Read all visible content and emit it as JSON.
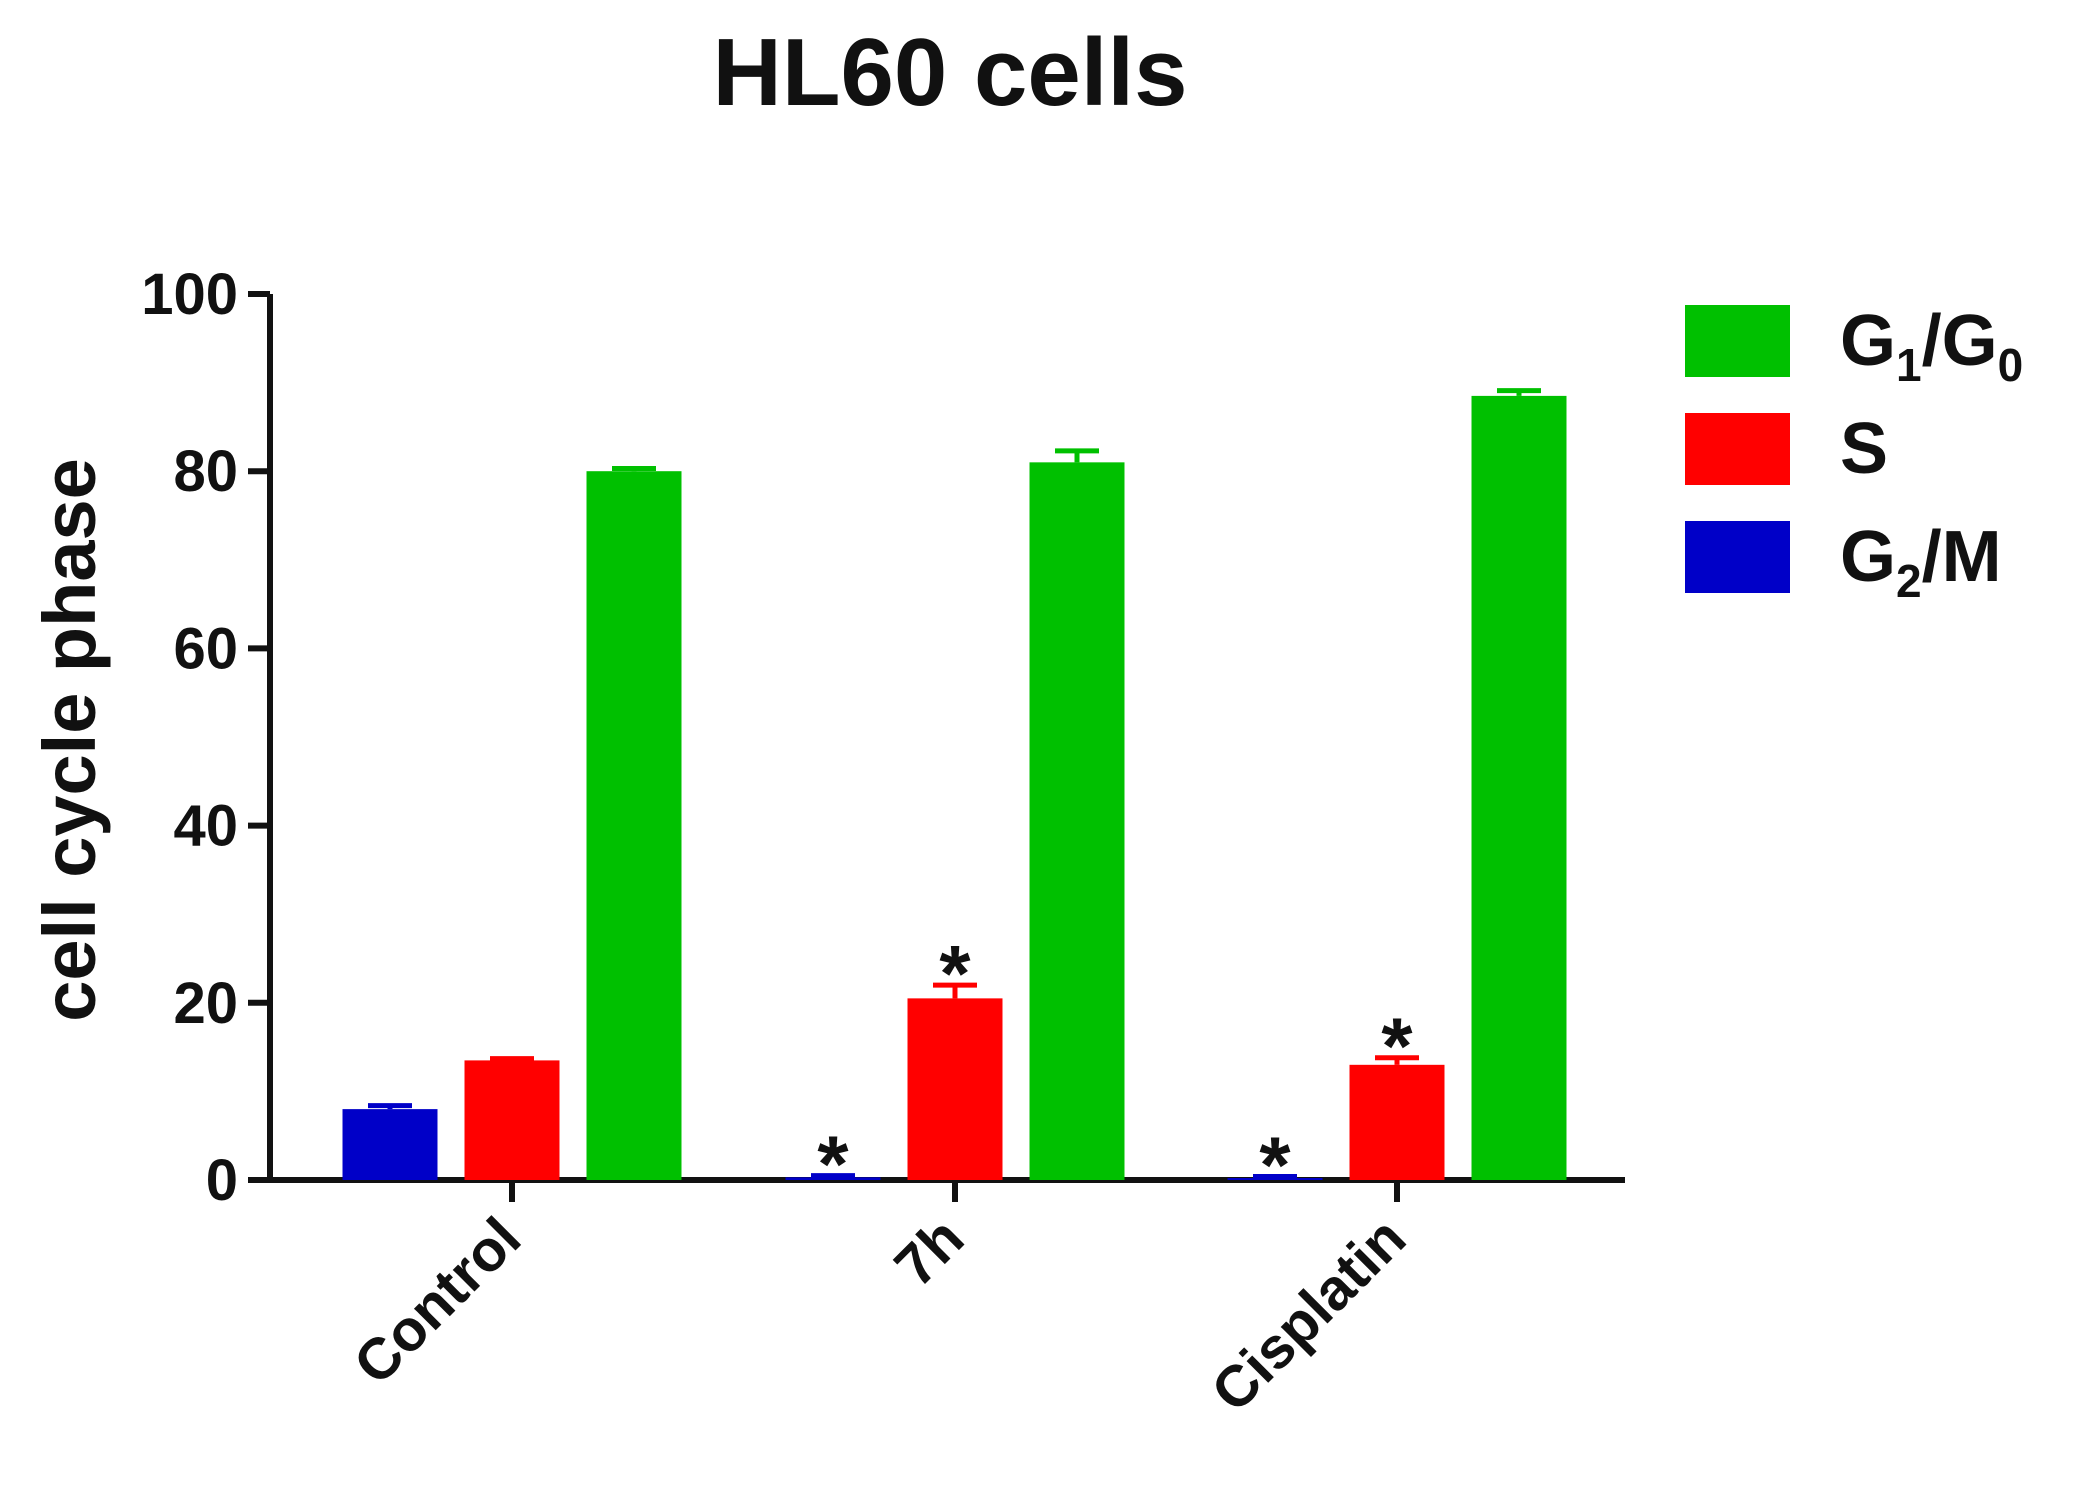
{
  "chart_data": {
    "type": "bar",
    "title": "HL60 cells",
    "ylabel": "cell cycle phase",
    "xlabel": "",
    "ylim": [
      0,
      100
    ],
    "yticks": [
      0,
      20,
      40,
      60,
      80,
      100
    ],
    "categories": [
      "Control",
      "7h",
      "Cisplatin"
    ],
    "series": [
      {
        "name": "G2/M",
        "label_parts": [
          "G",
          "2",
          "/M"
        ],
        "color": "#0000c8",
        "values": [
          8,
          0.3,
          0.2
        ],
        "errors": [
          0.4,
          0.2,
          0.2
        ],
        "significant": [
          false,
          true,
          true
        ]
      },
      {
        "name": "S",
        "label_parts": [
          "S",
          "",
          ""
        ],
        "color": "#ff0000",
        "values": [
          13.5,
          20.5,
          13
        ],
        "errors": [
          0.2,
          1.5,
          0.8
        ],
        "significant": [
          false,
          true,
          true
        ]
      },
      {
        "name": "G1/G0",
        "label_parts": [
          "G",
          "1",
          "/G",
          "0"
        ],
        "color": "#00c000",
        "values": [
          80,
          81,
          88.5
        ],
        "errors": [
          0.3,
          1.3,
          0.6
        ],
        "significant": [
          false,
          false,
          false
        ]
      }
    ],
    "legend_order": [
      "G1/G0",
      "S",
      "G2/M"
    ],
    "significance_marker": "*",
    "grid": false,
    "legend_position": "top-right"
  }
}
